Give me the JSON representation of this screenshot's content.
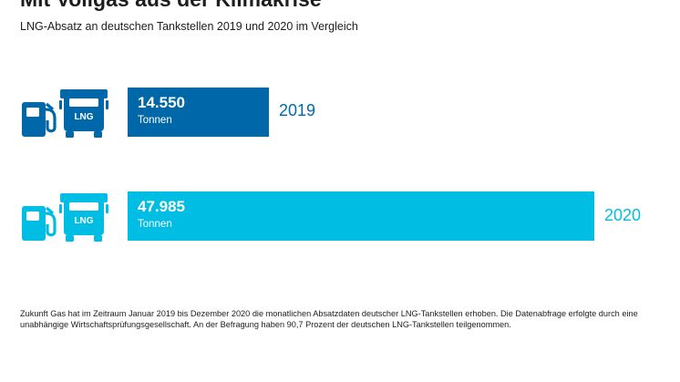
{
  "title": "Mit Vollgas aus der Klimakrise",
  "subtitle": "LNG-Absatz an deutschen Tankstellen 2019 und 2020 im Vergleich",
  "icon_text": "LNG",
  "colors": {
    "series_2019": "#0068a8",
    "series_2020": "#00bde3"
  },
  "chart_data": {
    "type": "bar",
    "orientation": "horizontal",
    "categories": [
      "2019",
      "2020"
    ],
    "values": [
      14550,
      47985
    ],
    "value_labels": [
      "14.550",
      "47.985"
    ],
    "unit": "Tonnen",
    "title": "Mit Vollgas aus der Klimakrise",
    "subtitle": "LNG-Absatz an deutschen Tankstellen 2019 und 2020 im Vergleich",
    "xlabel": "",
    "ylabel": "",
    "grid": false,
    "legend": "none"
  },
  "rows": [
    {
      "year": "2019",
      "value_label": "14.550",
      "unit": "Tonnen",
      "icon_color": "#0068a8"
    },
    {
      "year": "2020",
      "value_label": "47.985",
      "unit": "Tonnen",
      "icon_color": "#00bde3"
    }
  ],
  "footnote": "Zukunft Gas hat im Zeitraum Januar 2019 bis Dezember 2020 die monatlichen Absatzdaten deutscher LNG-Tankstellen erhoben. Die Datenabfrage erfolgte durch eine unabhängige Wirtschaftsprüfungsgesellschaft. An der Befragung haben 90,7 Prozent der deutschen LNG-Tankstellen teilgenommen."
}
